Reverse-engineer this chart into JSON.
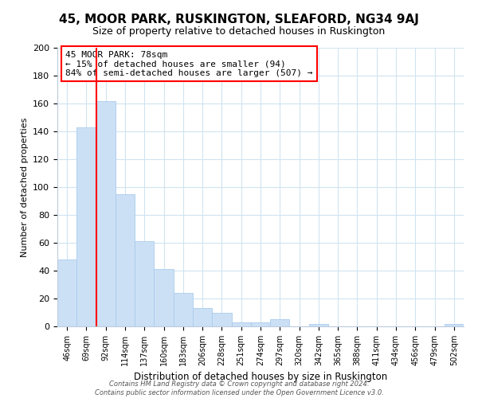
{
  "title": "45, MOOR PARK, RUSKINGTON, SLEAFORD, NG34 9AJ",
  "subtitle": "Size of property relative to detached houses in Ruskington",
  "xlabel": "Distribution of detached houses by size in Ruskington",
  "ylabel": "Number of detached properties",
  "bar_labels": [
    "46sqm",
    "69sqm",
    "92sqm",
    "114sqm",
    "137sqm",
    "160sqm",
    "183sqm",
    "206sqm",
    "228sqm",
    "251sqm",
    "274sqm",
    "297sqm",
    "320sqm",
    "342sqm",
    "365sqm",
    "388sqm",
    "411sqm",
    "434sqm",
    "456sqm",
    "479sqm",
    "502sqm"
  ],
  "bar_values": [
    48,
    143,
    162,
    95,
    61,
    41,
    24,
    13,
    10,
    3,
    3,
    5,
    0,
    2,
    0,
    0,
    0,
    0,
    0,
    0,
    2
  ],
  "bar_color": "#cce0f5",
  "bar_edge_color": "#aaccee",
  "ylim": [
    0,
    200
  ],
  "yticks": [
    0,
    20,
    40,
    60,
    80,
    100,
    120,
    140,
    160,
    180,
    200
  ],
  "property_line_label": "45 MOOR PARK: 78sqm",
  "annotation_line1": "← 15% of detached houses are smaller (94)",
  "annotation_line2": "84% of semi-detached houses are larger (507) →",
  "footer1": "Contains HM Land Registry data © Crown copyright and database right 2024.",
  "footer2": "Contains public sector information licensed under the Open Government Licence v3.0.",
  "background_color": "#ffffff",
  "grid_color": "#d0e4f0"
}
